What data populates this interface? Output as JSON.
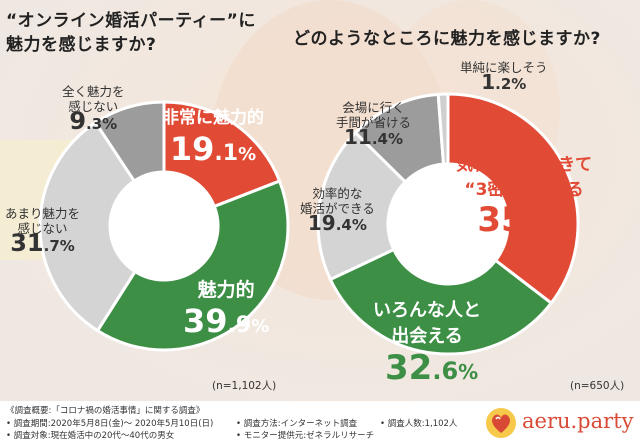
{
  "titles": {
    "left_line1": "“オンライン婚活パーティー”に",
    "left_line2": "魅力を感じますか?",
    "right": "どのようなところに魅力を感じますか?"
  },
  "chart_data": [
    {
      "type": "pie",
      "title": "“オンライン婚活パーティー”に魅力を感じますか?",
      "unit": "%",
      "slices": [
        {
          "label": "非常に魅力的",
          "value": 19.1,
          "color": "#e14b35"
        },
        {
          "label": "魅力的",
          "value": 39.9,
          "color": "#3d8f46"
        },
        {
          "label": "あまり魅力を感じない",
          "value": 31.7,
          "color": "#d4d4d4"
        },
        {
          "label": "全く魅力を感じない",
          "value": 9.3,
          "color": "#9c9c9c"
        }
      ],
      "n": "(n=1,102人)"
    },
    {
      "type": "pie",
      "title": "どのようなところに魅力を感じますか?",
      "unit": "%",
      "slices": [
        {
          "label": "気軽に参加できて“3密”も防げる",
          "value": 35.4,
          "color": "#e14b35"
        },
        {
          "label": "いろんな人と出会える",
          "value": 32.6,
          "color": "#3d8f46"
        },
        {
          "label": "効率的な婚活ができる",
          "value": 19.4,
          "color": "#d4d4d4"
        },
        {
          "label": "会場に行く手間が省ける",
          "value": 11.4,
          "color": "#9c9c9c"
        },
        {
          "label": "単純に楽しそう",
          "value": 1.2,
          "color": "#cfcfcf"
        }
      ],
      "n": "(n=650人)"
    }
  ],
  "left_labels": {
    "very": {
      "line1": "非常に魅力的",
      "int": "19",
      "dec": ".1",
      "unit": "%"
    },
    "attractive": {
      "line1": "魅力的",
      "int": "39",
      "dec": ".9",
      "unit": "%"
    },
    "not_much": {
      "line1": "あまり魅力を",
      "line2": "感じない",
      "int": "31",
      "dec": ".7",
      "unit": "%"
    },
    "not_at_all": {
      "line1": "全く魅力を",
      "line2": "感じない",
      "int": "9",
      "dec": ".3",
      "unit": "%"
    }
  },
  "right_labels": {
    "easy": {
      "line1": "気軽に参加できて",
      "line2": "“3密”も防げる",
      "int": "35",
      "dec": ".4",
      "unit": "%"
    },
    "meet": {
      "line1": "いろんな人と",
      "line2": "出会える",
      "int": "32",
      "dec": ".6",
      "unit": "%"
    },
    "efficient": {
      "line1": "効率的な",
      "line2": "婚活ができる",
      "int": "19",
      "dec": ".4",
      "unit": "%"
    },
    "venue": {
      "line1": "会場に行く",
      "line2": "手間が省ける",
      "int": "11",
      "dec": ".4",
      "unit": "%"
    },
    "fun": {
      "line1": "単純に楽しそう",
      "int": "1",
      "dec": ".2",
      "unit": "%"
    }
  },
  "footer": {
    "summary": "《調査概要:「コロナ禍の婚活事情」に関する調査》",
    "period": "• 調査期間:2020年5月8日(金)〜 2020年5月10日(日)",
    "method": "• 調査方法:インターネット調査",
    "count": "• 調査人数:1,102人",
    "target": "• 調査対象:現在婚活中の20代〜40代の男女",
    "provider": "• モニター提供元:ゼネラルリサーチ",
    "brand": "aeru.party"
  },
  "colors": {
    "red": "#e14b35",
    "green": "#3d8f46",
    "light_gray": "#d4d4d4",
    "dark_gray": "#9c9c9c",
    "brand_red": "#d84a35"
  }
}
